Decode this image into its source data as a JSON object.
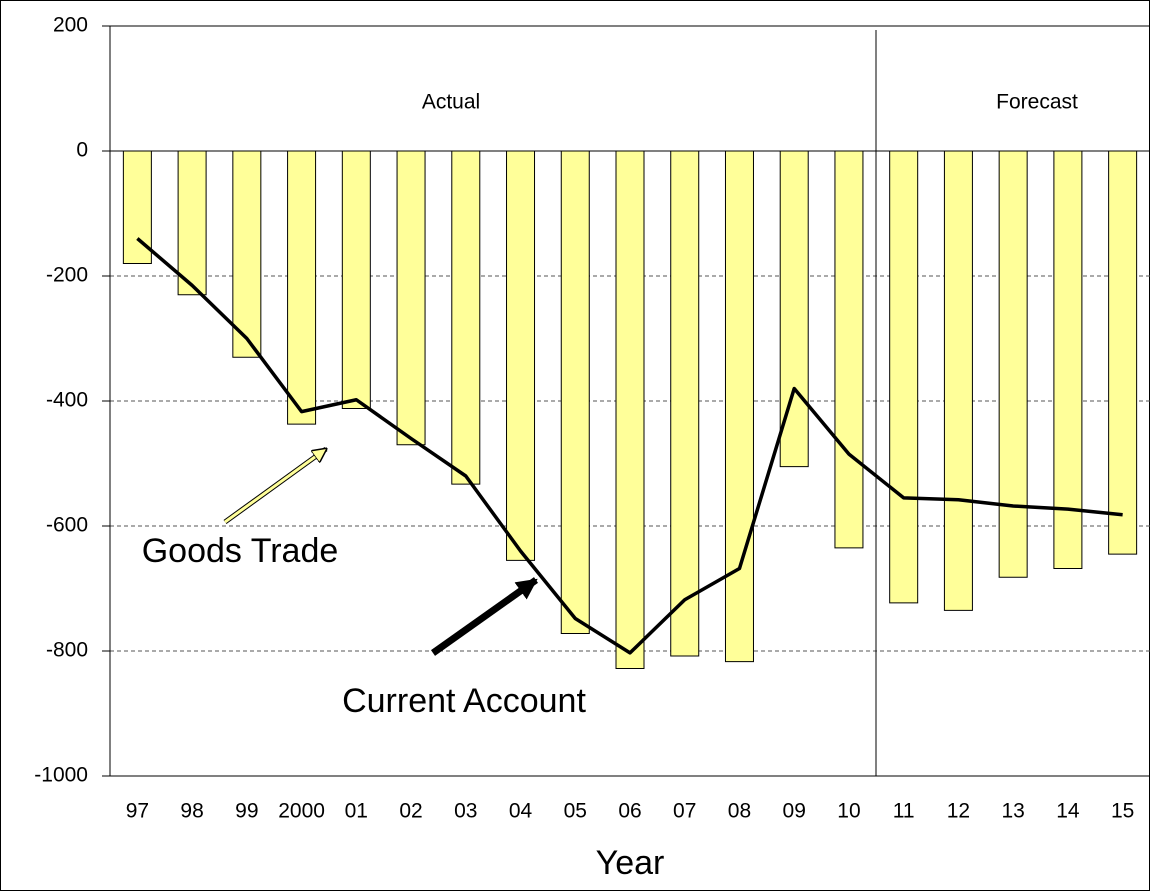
{
  "chart_data": {
    "type": "bar",
    "x_label": "Year",
    "annotations": [
      "Actual",
      "Forecast"
    ],
    "categories": [
      "97",
      "98",
      "99",
      "2000",
      "01",
      "02",
      "03",
      "04",
      "05",
      "06",
      "07",
      "08",
      "09",
      "10",
      "11",
      "12",
      "13",
      "14",
      "15"
    ],
    "series": [
      {
        "name": "Goods Trade",
        "type": "bar",
        "color": "#ffff99",
        "values": [
          -180,
          -230,
          -330,
          -437,
          -412,
          -470,
          -533,
          -655,
          -772,
          -828,
          -808,
          -817,
          -505,
          -635,
          -723,
          -735,
          -682,
          -668,
          -645
        ]
      },
      {
        "name": "Current Account",
        "type": "line",
        "color": "#000000",
        "values": [
          -140,
          -215,
          -300,
          -417,
          -398,
          -460,
          -520,
          -640,
          -748,
          -803,
          -718,
          -668,
          -380,
          -485,
          -555,
          -558,
          -568,
          -573,
          -582
        ]
      }
    ],
    "ylim": [
      -1000,
      200
    ],
    "yticks": [
      -1000,
      -800,
      -600,
      -400,
      -200,
      0,
      200
    ],
    "grid": true
  }
}
